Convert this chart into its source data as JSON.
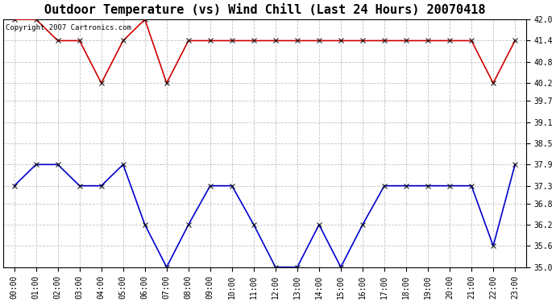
{
  "title": "Outdoor Temperature (vs) Wind Chill (Last 24 Hours) 20070418",
  "copyright_text": "Copyright 2007 Cartronics.com",
  "x_labels": [
    "00:00",
    "01:00",
    "02:00",
    "03:00",
    "04:00",
    "05:00",
    "06:00",
    "07:00",
    "08:00",
    "09:00",
    "10:00",
    "11:00",
    "12:00",
    "13:00",
    "14:00",
    "15:00",
    "16:00",
    "17:00",
    "18:00",
    "19:00",
    "20:00",
    "21:00",
    "22:00",
    "23:00"
  ],
  "temp_y": [
    42.0,
    42.0,
    41.4,
    41.4,
    40.2,
    41.4,
    42.0,
    40.2,
    41.4,
    41.4,
    41.4,
    41.4,
    41.4,
    41.4,
    41.4,
    41.4,
    41.4,
    41.4,
    41.4,
    41.4,
    41.4,
    41.4,
    40.2,
    41.4
  ],
  "wc_y": [
    37.3,
    37.9,
    37.9,
    37.3,
    37.3,
    37.9,
    36.2,
    35.0,
    36.2,
    37.3,
    37.3,
    36.2,
    35.0,
    35.0,
    36.2,
    35.0,
    36.2,
    37.3,
    37.3,
    37.3,
    37.3,
    37.3,
    35.6,
    37.9
  ],
  "temp_color": "#cc0000",
  "wc_color": "#0000cc",
  "bg_color": "#ffffff",
  "grid_color": "#bbbbbb",
  "ylim_min": 35.0,
  "ylim_max": 42.0,
  "yticks": [
    35.0,
    35.6,
    36.2,
    36.8,
    37.3,
    37.9,
    38.5,
    39.1,
    39.7,
    40.2,
    40.8,
    41.4,
    42.0
  ],
  "title_fontsize": 11,
  "tick_fontsize": 7,
  "marker": "x",
  "marker_size": 4,
  "line_width": 1.2,
  "copyright_fontsize": 6.5
}
